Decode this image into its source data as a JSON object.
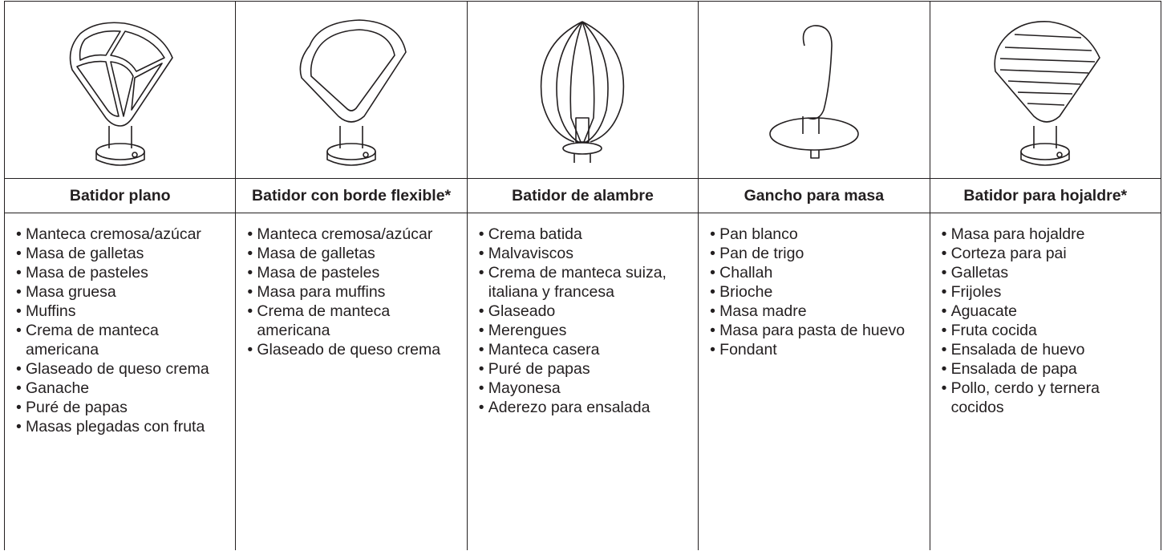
{
  "columns": [
    {
      "title": "Batidor plano",
      "items": [
        "Manteca cremosa/azúcar",
        "Masa de galletas",
        "Masa de pasteles",
        "Masa gruesa",
        "Muffins",
        "Crema de manteca americana",
        "Glaseado de queso crema",
        "Ganache",
        "Puré de papas",
        "Masas plegadas con fruta"
      ]
    },
    {
      "title": "Batidor con borde flexible*",
      "items": [
        "Manteca cremosa/azúcar",
        "Masa de galletas",
        "Masa de pasteles",
        "Masa para muffins",
        "Crema de manteca americana",
        "Glaseado de queso crema"
      ]
    },
    {
      "title": "Batidor de alambre",
      "items": [
        "Crema batida",
        "Malvaviscos",
        "Crema de manteca suiza, italiana y francesa",
        "Glaseado",
        "Merengues",
        "Manteca casera",
        "Puré de papas",
        "Mayonesa",
        "Aderezo para ensalada"
      ]
    },
    {
      "title": "Gancho para masa",
      "items": [
        "Pan blanco",
        "Pan de trigo",
        "Challah",
        "Brioche",
        "Masa madre",
        "Masa para pasta de huevo",
        "Fondant"
      ]
    },
    {
      "title": "Batidor para hojaldre*",
      "items": [
        "Masa para hojaldre",
        "Corteza para pai",
        "Galletas",
        "Frijoles",
        "Aguacate",
        "Fruta cocida",
        "Ensalada de huevo",
        "Ensalada de papa",
        "Pollo, cerdo y ternera cocidos"
      ]
    }
  ]
}
